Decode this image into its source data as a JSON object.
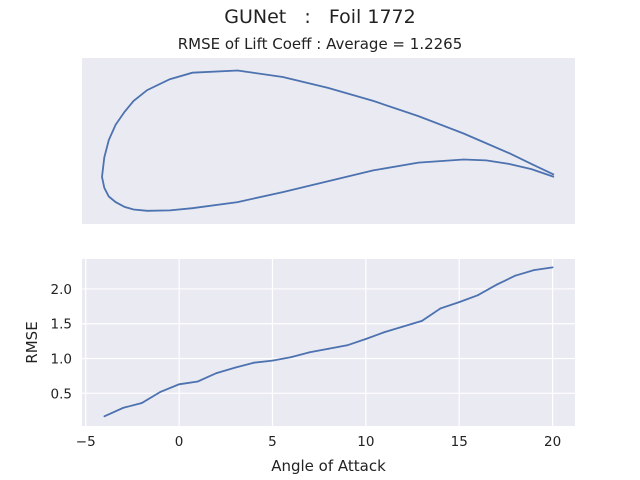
{
  "figure": {
    "suptitle": "GUNet   :   Foil 1772",
    "subtitle": "RMSE of Lift Coeff : Average = 1.2265"
  },
  "colors": {
    "line": "#4c72b0",
    "axes_bg": "#eaeaf2",
    "grid": "#ffffff",
    "text": "#222222"
  },
  "chart_data": [
    {
      "type": "line",
      "panel": "airfoil",
      "x": [
        1.0,
        0.95,
        0.9,
        0.8,
        0.7,
        0.6,
        0.5,
        0.4,
        0.3,
        0.2,
        0.15,
        0.1,
        0.07,
        0.05,
        0.03,
        0.015,
        0.005,
        0.0,
        0.005,
        0.015,
        0.03,
        0.05,
        0.07,
        0.1,
        0.15,
        0.2,
        0.3,
        0.4,
        0.5,
        0.6,
        0.7,
        0.8,
        0.85,
        0.9,
        0.95,
        1.0
      ],
      "y": [
        0.005,
        0.03,
        0.055,
        0.1,
        0.14,
        0.175,
        0.205,
        0.23,
        0.245,
        0.24,
        0.225,
        0.2,
        0.175,
        0.15,
        0.12,
        0.085,
        0.045,
        0.0,
        -0.025,
        -0.045,
        -0.058,
        -0.069,
        -0.075,
        -0.078,
        -0.077,
        -0.072,
        -0.058,
        -0.035,
        -0.01,
        0.015,
        0.033,
        0.04,
        0.038,
        0.03,
        0.018,
        0.0
      ],
      "axes_visible": false
    },
    {
      "type": "line",
      "panel": "rmse",
      "x": [
        -4,
        -3,
        -2,
        -1,
        0,
        1,
        2,
        3,
        4,
        5,
        6,
        7,
        8,
        9,
        10,
        11,
        12,
        13,
        14,
        15,
        16,
        17,
        18,
        19,
        20
      ],
      "y": [
        0.17,
        0.29,
        0.36,
        0.52,
        0.63,
        0.67,
        0.79,
        0.87,
        0.94,
        0.97,
        1.02,
        1.09,
        1.14,
        1.19,
        1.28,
        1.38,
        1.46,
        1.54,
        1.72,
        1.81,
        1.91,
        2.06,
        2.19,
        2.27,
        2.31
      ],
      "xlabel": "Angle of Attack",
      "ylabel": "RMSE",
      "xlim": [
        -5.2,
        21.2
      ],
      "ylim": [
        0.03,
        2.43
      ],
      "xticks": [
        "−5",
        "0",
        "5",
        "10",
        "15",
        "20"
      ],
      "xtick_values": [
        -5,
        0,
        5,
        10,
        15,
        20
      ],
      "yticks": [
        "0.5",
        "1.0",
        "1.5",
        "2.0"
      ],
      "ytick_values": [
        0.5,
        1.0,
        1.5,
        2.0
      ],
      "grid": true
    }
  ]
}
